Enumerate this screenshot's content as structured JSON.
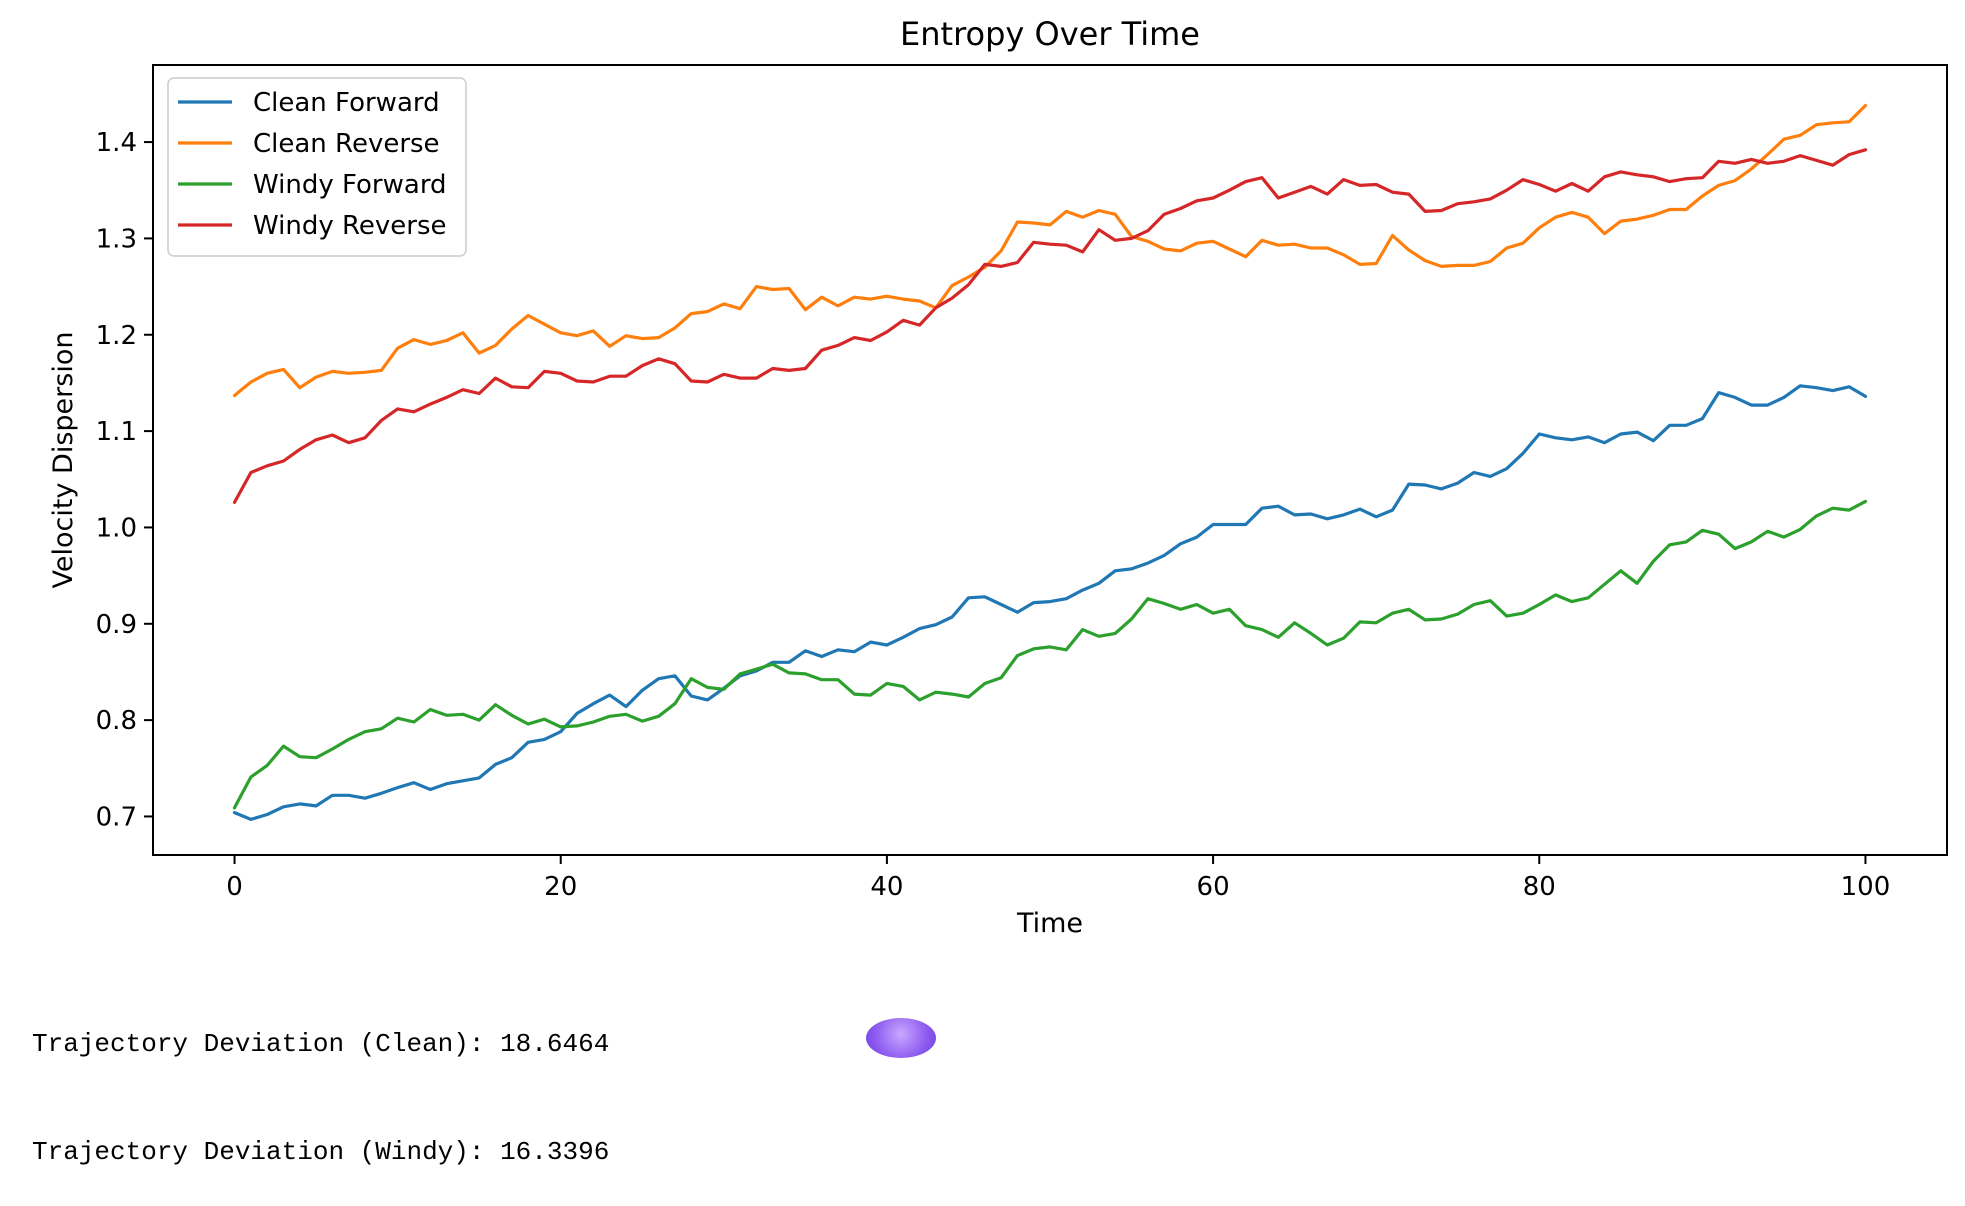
{
  "chart_data": {
    "type": "line",
    "title": "Entropy Over Time",
    "xlabel": "Time",
    "ylabel": "Velocity Dispersion",
    "xlim": [
      -5,
      105
    ],
    "ylim": [
      0.66,
      1.48
    ],
    "xticks": [
      0,
      20,
      40,
      60,
      80,
      100
    ],
    "yticks": [
      0.7,
      0.8,
      0.9,
      1.0,
      1.1,
      1.2,
      1.3,
      1.4
    ],
    "ytick_labels": [
      "0.7",
      "0.8",
      "0.9",
      "1.0",
      "1.1",
      "1.2",
      "1.3",
      "1.4"
    ],
    "grid": false,
    "legend_position": "top-left",
    "x": [
      0,
      1,
      2,
      3,
      4,
      5,
      6,
      7,
      8,
      9,
      10,
      11,
      12,
      13,
      14,
      15,
      16,
      17,
      18,
      19,
      20,
      21,
      22,
      23,
      24,
      25,
      26,
      27,
      28,
      29,
      30,
      31,
      32,
      33,
      34,
      35,
      36,
      37,
      38,
      39,
      40,
      41,
      42,
      43,
      44,
      45,
      46,
      47,
      48,
      49,
      50,
      51,
      52,
      53,
      54,
      55,
      56,
      57,
      58,
      59,
      60,
      61,
      62,
      63,
      64,
      65,
      66,
      67,
      68,
      69,
      70,
      71,
      72,
      73,
      74,
      75,
      76,
      77,
      78,
      79,
      80,
      81,
      82,
      83,
      84,
      85,
      86,
      87,
      88,
      89,
      90,
      91,
      92,
      93,
      94,
      95,
      96,
      97,
      98,
      99,
      100
    ],
    "series": [
      {
        "name": "Clean Forward",
        "color": "#1f77b4",
        "values": [
          0.704,
          0.697,
          0.702,
          0.71,
          0.713,
          0.711,
          0.722,
          0.722,
          0.719,
          0.724,
          0.73,
          0.735,
          0.728,
          0.734,
          0.737,
          0.74,
          0.754,
          0.761,
          0.777,
          0.78,
          0.788,
          0.807,
          0.817,
          0.826,
          0.814,
          0.831,
          0.843,
          0.846,
          0.825,
          0.821,
          0.833,
          0.846,
          0.851,
          0.86,
          0.86,
          0.872,
          0.866,
          0.873,
          0.871,
          0.881,
          0.878,
          0.886,
          0.895,
          0.899,
          0.907,
          0.927,
          0.928,
          0.92,
          0.912,
          0.922,
          0.923,
          0.926,
          0.935,
          0.942,
          0.955,
          0.957,
          0.963,
          0.971,
          0.983,
          0.99,
          1.003,
          1.003,
          1.003,
          1.02,
          1.022,
          1.013,
          1.014,
          1.009,
          1.013,
          1.019,
          1.011,
          1.018,
          1.045,
          1.044,
          1.04,
          1.046,
          1.057,
          1.053,
          1.061,
          1.077,
          1.097,
          1.093,
          1.091,
          1.094,
          1.088,
          1.097,
          1.099,
          1.09,
          1.106,
          1.106,
          1.113,
          1.14,
          1.135,
          1.127,
          1.127,
          1.135,
          1.147,
          1.145,
          1.142,
          1.146,
          1.136
        ]
      },
      {
        "name": "Clean Reverse",
        "color": "#ff7f0e",
        "values": [
          1.137,
          1.151,
          1.16,
          1.164,
          1.145,
          1.156,
          1.162,
          1.16,
          1.161,
          1.163,
          1.186,
          1.195,
          1.19,
          1.194,
          1.202,
          1.181,
          1.189,
          1.206,
          1.22,
          1.211,
          1.202,
          1.199,
          1.204,
          1.188,
          1.199,
          1.196,
          1.197,
          1.207,
          1.222,
          1.224,
          1.232,
          1.227,
          1.25,
          1.247,
          1.248,
          1.226,
          1.239,
          1.23,
          1.239,
          1.237,
          1.24,
          1.237,
          1.235,
          1.228,
          1.251,
          1.26,
          1.27,
          1.287,
          1.317,
          1.316,
          1.314,
          1.328,
          1.322,
          1.329,
          1.325,
          1.302,
          1.297,
          1.289,
          1.287,
          1.295,
          1.297,
          1.289,
          1.281,
          1.298,
          1.293,
          1.294,
          1.29,
          1.29,
          1.283,
          1.273,
          1.274,
          1.303,
          1.288,
          1.277,
          1.271,
          1.272,
          1.272,
          1.276,
          1.29,
          1.295,
          1.311,
          1.322,
          1.327,
          1.322,
          1.305,
          1.318,
          1.32,
          1.324,
          1.33,
          1.33,
          1.344,
          1.355,
          1.36,
          1.372,
          1.387,
          1.403,
          1.407,
          1.418,
          1.42,
          1.421,
          1.438
        ]
      },
      {
        "name": "Windy Forward",
        "color": "#2ca02c",
        "values": [
          0.709,
          0.741,
          0.753,
          0.773,
          0.762,
          0.761,
          0.77,
          0.78,
          0.788,
          0.791,
          0.802,
          0.798,
          0.811,
          0.805,
          0.806,
          0.8,
          0.816,
          0.805,
          0.796,
          0.801,
          0.793,
          0.794,
          0.798,
          0.804,
          0.806,
          0.799,
          0.804,
          0.817,
          0.843,
          0.834,
          0.832,
          0.848,
          0.853,
          0.858,
          0.849,
          0.848,
          0.842,
          0.842,
          0.827,
          0.826,
          0.838,
          0.835,
          0.821,
          0.829,
          0.827,
          0.824,
          0.838,
          0.844,
          0.867,
          0.874,
          0.876,
          0.873,
          0.894,
          0.887,
          0.89,
          0.905,
          0.926,
          0.921,
          0.915,
          0.92,
          0.911,
          0.915,
          0.898,
          0.894,
          0.886,
          0.901,
          0.89,
          0.878,
          0.885,
          0.902,
          0.901,
          0.911,
          0.915,
          0.904,
          0.905,
          0.91,
          0.92,
          0.924,
          0.908,
          0.911,
          0.92,
          0.93,
          0.923,
          0.927,
          0.941,
          0.955,
          0.942,
          0.965,
          0.982,
          0.985,
          0.997,
          0.993,
          0.978,
          0.985,
          0.996,
          0.99,
          0.998,
          1.012,
          1.02,
          1.018,
          1.027
        ]
      },
      {
        "name": "Windy Reverse",
        "color": "#d62728",
        "values": [
          1.026,
          1.057,
          1.064,
          1.069,
          1.081,
          1.091,
          1.096,
          1.088,
          1.093,
          1.111,
          1.123,
          1.12,
          1.128,
          1.135,
          1.143,
          1.139,
          1.155,
          1.146,
          1.145,
          1.162,
          1.16,
          1.152,
          1.151,
          1.157,
          1.157,
          1.168,
          1.175,
          1.17,
          1.152,
          1.151,
          1.159,
          1.155,
          1.155,
          1.165,
          1.163,
          1.165,
          1.184,
          1.189,
          1.197,
          1.194,
          1.203,
          1.215,
          1.21,
          1.228,
          1.238,
          1.252,
          1.273,
          1.271,
          1.275,
          1.296,
          1.294,
          1.293,
          1.286,
          1.309,
          1.298,
          1.3,
          1.308,
          1.325,
          1.331,
          1.339,
          1.342,
          1.35,
          1.359,
          1.363,
          1.342,
          1.348,
          1.354,
          1.346,
          1.361,
          1.355,
          1.356,
          1.348,
          1.346,
          1.328,
          1.329,
          1.336,
          1.338,
          1.341,
          1.35,
          1.361,
          1.356,
          1.349,
          1.357,
          1.349,
          1.364,
          1.369,
          1.366,
          1.364,
          1.359,
          1.362,
          1.363,
          1.38,
          1.378,
          1.382,
          1.378,
          1.38,
          1.386,
          1.381,
          1.376,
          1.387,
          1.392
        ]
      }
    ]
  },
  "output": {
    "line1": "Trajectory Deviation (Clean): 18.6464",
    "line2": "Trajectory Deviation (Windy): 16.3396"
  }
}
